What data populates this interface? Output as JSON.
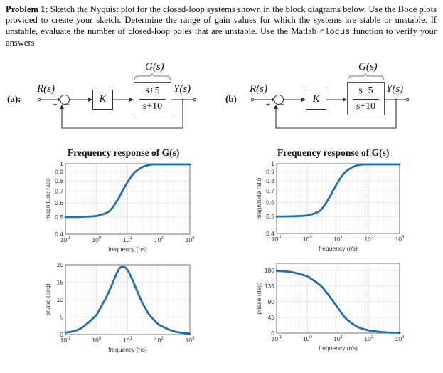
{
  "problem": {
    "heading": "Problem 1:",
    "text_part1": " Sketch the Nyquist plot for the closed-loop systems shown in the block diagrams below.  Use the Bode plots provided to create your sketch. Determine the range of gain values for which the systems are stable or unstable.  If unstable, evaluate the number of closed-loop poles that are unstable.  Use the Matlab ",
    "code": "rlocus",
    "text_part2": " function to verify your answers"
  },
  "diagrams": [
    {
      "label": "(a):",
      "input": "R(s)",
      "output": "Y(s)",
      "plus": "+",
      "minus": "−",
      "gain": "K",
      "plant_name": "G(s)",
      "numerator": "s+5",
      "denominator": "s+10"
    },
    {
      "label": "(b)",
      "input": "R(s)",
      "output": "Y(s)",
      "plus": "+",
      "minus": "−",
      "gain": "K",
      "plant_name": "G(s)",
      "numerator": "s−5",
      "denominator": "s+10"
    }
  ],
  "colors": {
    "curve": "#1f6fad",
    "grid": "#e2e2e2",
    "axis": "#555555"
  },
  "chart_data": [
    {
      "panel": "a-magnitude",
      "type": "line",
      "title": "Frequency response of G(s)",
      "xlabel": "frequency (r/s)",
      "ylabel": "magnitude ratio",
      "xscale": "log",
      "yscale": "log",
      "xlim": [
        0.1,
        1000
      ],
      "ylim": [
        0.4,
        1
      ],
      "xticks": [
        "10^-1",
        "10^0",
        "10^1",
        "10^2",
        "10^3"
      ],
      "yticks": [
        "0.4",
        "0.5",
        "0.6",
        "0.7",
        "0.8",
        "0.9",
        "1"
      ],
      "grid": true,
      "x": [
        0.1,
        0.3,
        1,
        2,
        3,
        5,
        7,
        10,
        15,
        20,
        30,
        50,
        100,
        300,
        1000
      ],
      "values": [
        0.5,
        0.501,
        0.507,
        0.526,
        0.555,
        0.632,
        0.707,
        0.79,
        0.873,
        0.917,
        0.958,
        0.985,
        0.996,
        1.0,
        1.0
      ]
    },
    {
      "panel": "a-phase",
      "type": "line",
      "title": "",
      "xlabel": "frequency (r/s)",
      "ylabel": "phase (deg)",
      "xscale": "log",
      "xlim": [
        0.1,
        1000
      ],
      "ylim": [
        0,
        20
      ],
      "xticks": [
        "10^-1",
        "10^0",
        "10^1",
        "10^2",
        "10^3"
      ],
      "yticks": [
        "0",
        "5",
        "10",
        "15",
        "20"
      ],
      "grid": true,
      "x": [
        0.1,
        0.3,
        1,
        2,
        3,
        5,
        7.07,
        10,
        15,
        20,
        30,
        50,
        100,
        300,
        1000
      ],
      "values": [
        0.57,
        1.72,
        5.6,
        10.4,
        13.9,
        18.4,
        19.5,
        18.4,
        15.3,
        12.5,
        8.97,
        5.61,
        2.86,
        0.95,
        0.29
      ]
    },
    {
      "panel": "b-magnitude",
      "type": "line",
      "title": "Frequency response of G(s)",
      "xlabel": "frequency (r/s)",
      "ylabel": "magnitude ratio",
      "xscale": "log",
      "yscale": "log",
      "xlim": [
        0.1,
        1000
      ],
      "ylim": [
        0.4,
        1
      ],
      "xticks": [
        "10^-1",
        "10^0",
        "10^1",
        "10^2",
        "10^3"
      ],
      "yticks": [
        "0.4",
        "0.5",
        "0.6",
        "0.7",
        "0.8",
        "0.9",
        "1"
      ],
      "grid": true,
      "x": [
        0.1,
        0.3,
        1,
        2,
        3,
        5,
        7,
        10,
        15,
        20,
        30,
        50,
        100,
        300,
        1000
      ],
      "values": [
        0.5,
        0.501,
        0.507,
        0.526,
        0.555,
        0.632,
        0.707,
        0.79,
        0.873,
        0.917,
        0.958,
        0.985,
        0.996,
        1.0,
        1.0
      ]
    },
    {
      "panel": "b-phase",
      "type": "line",
      "title": "",
      "xlabel": "frequency (r/s)",
      "ylabel": "phase (deg)",
      "xscale": "log",
      "xlim": [
        0.1,
        1000
      ],
      "ylim": [
        0,
        200
      ],
      "xticks": [
        "10^-1",
        "10^0",
        "10^1",
        "10^2",
        "10^3"
      ],
      "yticks": [
        "0",
        "45",
        "90",
        "135",
        "180"
      ],
      "grid": true,
      "x": [
        0.1,
        0.3,
        1,
        2,
        3,
        5,
        7.07,
        10,
        15,
        20,
        30,
        50,
        100,
        300,
        1000
      ],
      "values": [
        178.3,
        174.8,
        162.9,
        145.4,
        132.3,
        108.4,
        90.0,
        71.6,
        50.3,
        37.9,
        26.0,
        15.1,
        7.7,
        2.6,
        0.86
      ]
    }
  ]
}
